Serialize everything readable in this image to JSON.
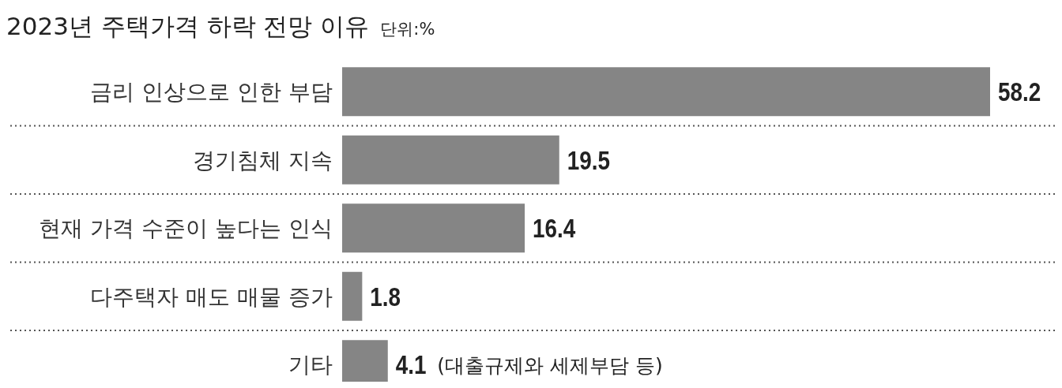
{
  "chart_data": {
    "type": "bar",
    "orientation": "horizontal",
    "title": "2023년 주택가격 하락 전망 이유",
    "subtitle": "단위:%",
    "categories": [
      "금리 인상으로 인한 부담",
      "경기침체 지속",
      "현재 가격 수준이 높다는 인식",
      "다주택자 매도 매물 증가",
      "기타"
    ],
    "values": [
      58.2,
      19.5,
      16.4,
      1.8,
      4.1
    ],
    "color": "#858585",
    "data_labels": true,
    "annotations": [
      {
        "text": "(대출규제와 세제부담 등)",
        "x": 4.1,
        "y": "기타"
      }
    ]
  }
}
